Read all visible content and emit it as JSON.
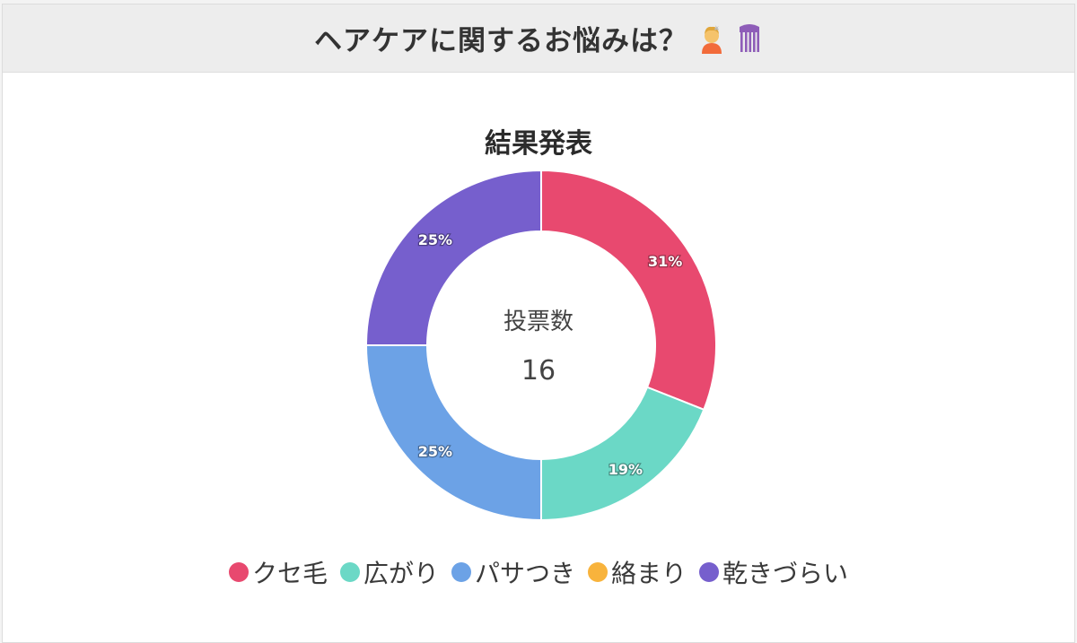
{
  "header": {
    "title": "ヘアケアに関するお悩みは？",
    "icons": [
      "person-getting-haircut-icon",
      "hair-pick-icon"
    ]
  },
  "center": {
    "caption": "投票数",
    "total": "16"
  },
  "chart_data": {
    "type": "pie",
    "title": "結果発表",
    "categories": [
      "クセ毛",
      "広がり",
      "パサつき",
      "絡まり",
      "乾きづらい"
    ],
    "values": [
      31,
      19,
      25,
      0,
      25
    ],
    "value_labels": [
      "31%",
      "19%",
      "25%",
      "",
      "25%"
    ],
    "colors": [
      "#e8496f",
      "#6bd8c6",
      "#6ca2e6",
      "#f8b33c",
      "#765fcd"
    ],
    "legend": "bottom"
  }
}
